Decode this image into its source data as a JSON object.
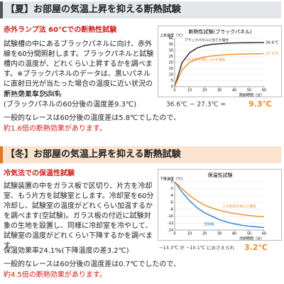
{
  "sections": [
    {
      "title": "【夏】お部屋の気温上昇を抑える断熱試験",
      "subtitle": "赤外ランプ法 60℃での断熱性試験",
      "body": "試験槽の中にあるブラックパネルに向け、赤外線を60分間照射します。ブラックパネルと試験槽内の温度が、どれくらい上昇するかを調べます。※ブラックパネルのデータは、黒いパネルに直射日光が当たった場合の温度に近い状況のデータとなります",
      "effect": "断熱効果率25.4%",
      "effect_note": "(ブラックパネルの60分後の温度差9.3℃)",
      "comparison": "一般的なレースは60分後の温度差は5.8℃でしたので、",
      "highlight": "約1.6倍の断熱効果があります。",
      "chart": {
        "type": "line",
        "title": "断熱性試験(ブラックパネル)",
        "y_label": "上昇温度（℃）",
        "x_label": "照射時間（分）",
        "x": [
          0,
          5,
          10,
          15,
          20,
          25,
          30,
          35,
          40,
          45,
          50,
          55,
          60
        ],
        "xlim": [
          0,
          60
        ],
        "ylim": [
          0,
          40
        ],
        "xticks": [
          0,
          10,
          20,
          30,
          40,
          50,
          60
        ],
        "yticks": [
          0,
          5,
          10,
          15,
          20,
          25,
          30,
          35,
          40
        ],
        "series": [
          {
            "name": "ブラックパネルに当てた場合",
            "color": "#222222",
            "values": [
              0,
              20,
              28,
              32,
              34,
              35,
              35.5,
              36,
              36.2,
              36.3,
              36.4,
              36.5,
              36.6
            ],
            "end_label": "36.6℃"
          },
          {
            "name": "この生地を間に入れた場合",
            "color": "#f08a24",
            "values": [
              0,
              14,
              20,
              23,
              24.5,
              25.5,
              26,
              26.5,
              26.8,
              27,
              27.1,
              27.2,
              27.3
            ],
            "end_label": "27.3℃"
          }
        ],
        "result_text": "36.6℃ − 27.3℃ =",
        "result_diff": "9.3℃"
      }
    },
    {
      "title": "【冬】お部屋の気温上昇を抑える断熱試験",
      "subtitle": "冷気法での保温性試験",
      "body": "試験装置の中をガラス板で区切り、片方を冷却室、もう片方を試験室とします。冷却室を60分冷却し、試験室の温度がどれくらい加温するかを調べます(空試験)。ガラス板の付近に試験対象の生地を設置し、同様に冷却室を冷やして、試験室の温度がどれくらい下降するかを調べます。",
      "effect": "保温効果率24.1%(下降温度の差3.2℃)",
      "comparison": "一般的なレースは60分後の温度差は0.7℃でしたので、",
      "highlight": "約4.5倍の断熱効果があります。",
      "chart": {
        "type": "line",
        "title": "保温性試験",
        "y_label": "下降温度（℃）",
        "x_label": "冷却時間（分）",
        "x": [
          0,
          5,
          10,
          15,
          20,
          25,
          30,
          35,
          40,
          45,
          50,
          55,
          60
        ],
        "xlim": [
          0,
          60
        ],
        "ylim": [
          -14,
          0
        ],
        "xticks": [
          0,
          10,
          20,
          30,
          40,
          50,
          60
        ],
        "yticks": [
          0,
          -2,
          -4,
          -6,
          -8,
          -10,
          -12,
          -14
        ],
        "series": [
          {
            "name": "空試験",
            "color": "#2f7fd0",
            "values": [
              0,
              -3,
              -5.5,
              -7.5,
              -9,
              -10,
              -11,
              -11.7,
              -12.2,
              -12.6,
              -12.9,
              -13.1,
              -13.3
            ]
          },
          {
            "name": "この生地を挟んだ場合",
            "color": "#f08a24",
            "values": [
              0,
              -2,
              -4,
              -5.5,
              -6.8,
              -7.6,
              -8.3,
              -8.8,
              -9.2,
              -9.5,
              -9.8,
              -10,
              -10.1
            ]
          }
        ],
        "result_text": "−13.3℃ が −10.1℃ におさえられ",
        "result_diff": "3.2℃"
      }
    }
  ]
}
